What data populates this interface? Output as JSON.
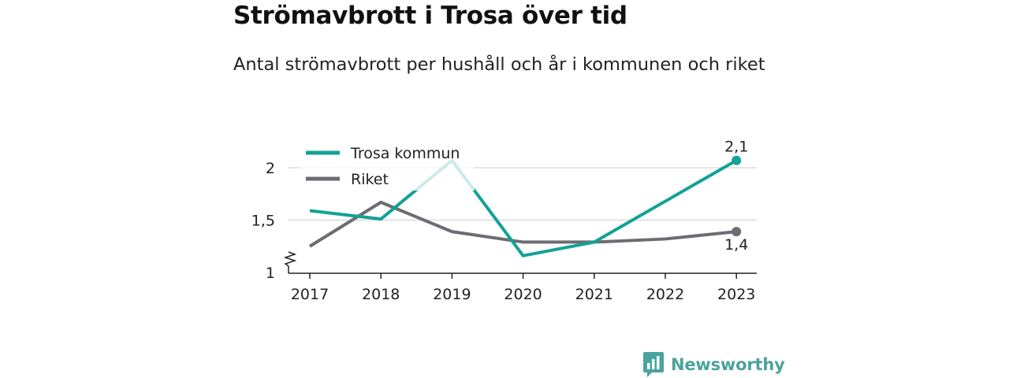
{
  "header": {
    "title": "Strömavbrott i Trosa över tid",
    "subtitle": "Antal strömavbrott per hushåll och år i kommunen och riket"
  },
  "chart_data": {
    "type": "line",
    "categories": [
      "2017",
      "2018",
      "2019",
      "2020",
      "2021",
      "2022",
      "2023"
    ],
    "ylim": [
      1,
      2.2
    ],
    "yticks": [
      1,
      1.5,
      2
    ],
    "ytick_labels": [
      "1",
      "1,5",
      "2"
    ],
    "y_axis_break": true,
    "grid": true,
    "legend_position": "top-left",
    "series": [
      {
        "name": "Trosa kommun",
        "color": "#12a296",
        "values": [
          1.59,
          1.51,
          2.07,
          1.16,
          1.29,
          1.68,
          2.07
        ],
        "end_label": "2,1"
      },
      {
        "name": "Riket",
        "color": "#6d6c72",
        "values": [
          1.25,
          1.67,
          1.39,
          1.29,
          1.29,
          1.32,
          1.39
        ],
        "end_label": "1,4"
      }
    ]
  },
  "brand": {
    "name": "Newsworthy",
    "color": "#4aa39c"
  }
}
